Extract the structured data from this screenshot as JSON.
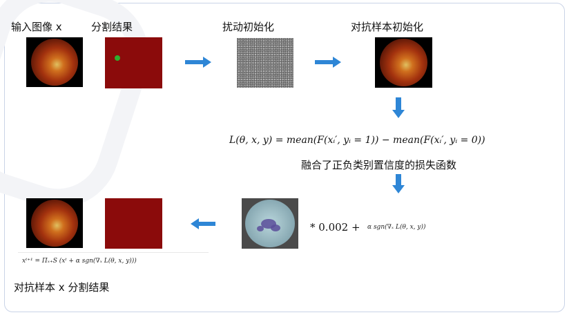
{
  "labels": {
    "input_image": "输入图像 x",
    "seg_result": "分割结果",
    "perturb_init": "扰动初始化",
    "adv_init": "对抗样本初始化",
    "loss_desc": "融合了正负类别置信度的损失函数",
    "adv_result": "对抗样本 x 分割结果"
  },
  "formulas": {
    "loss": "L(θ, x, y) = mean(F(xᵢ′, yᵢ = 1)) − mean(F(xᵢ′, yᵢ = 0))",
    "step_coef": "* 0.002 +",
    "step_sign": "α sgn(∇ₓ L(θ, x, y))",
    "update": "xᵗ⁺¹ = Πₓ₊S (xᵗ + α sgn(∇ₓ L(θ, x, y)))"
  },
  "colors": {
    "arrow": "#2e86d6",
    "segmentation": "#8b0b0b",
    "highlight": "#2fae2f"
  }
}
